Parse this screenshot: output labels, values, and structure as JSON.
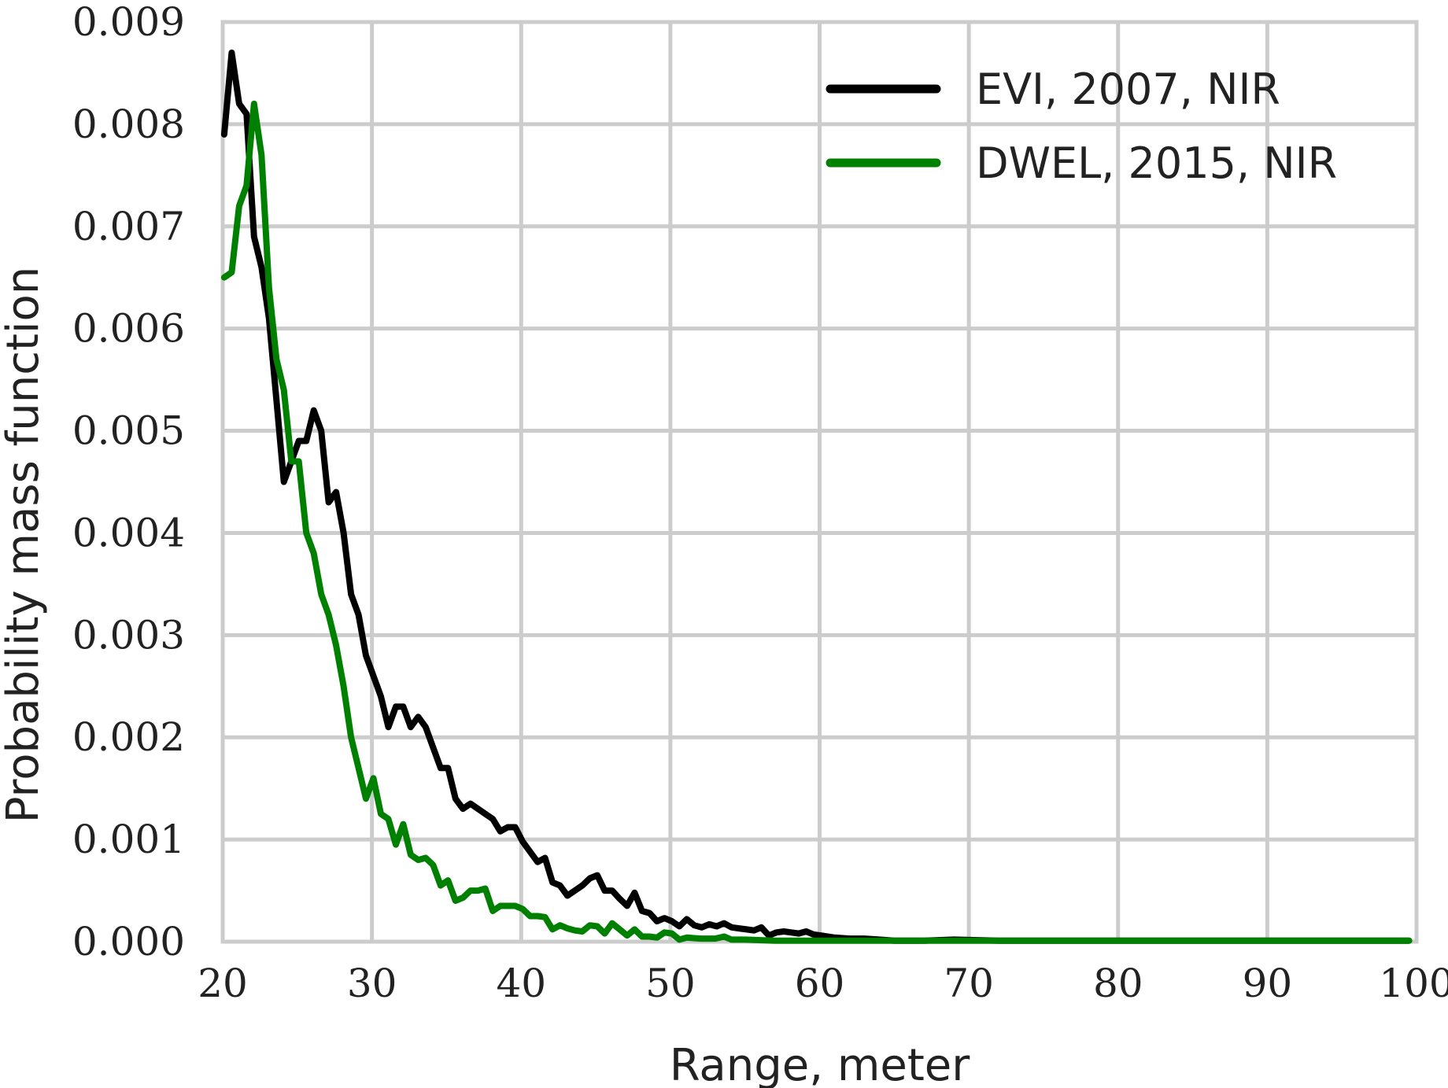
{
  "chart_data": {
    "type": "line",
    "xlabel": "Range, meter",
    "ylabel": "Probability mass function",
    "xlim": [
      20,
      100
    ],
    "ylim": [
      0,
      0.009
    ],
    "x_ticks": [
      "20",
      "30",
      "40",
      "50",
      "60",
      "70",
      "80",
      "90",
      "100"
    ],
    "y_ticks": [
      "0.000",
      "0.001",
      "0.002",
      "0.003",
      "0.004",
      "0.005",
      "0.006",
      "0.007",
      "0.008",
      "0.009"
    ],
    "grid": true,
    "legend_position": "top-right",
    "series": [
      {
        "name": "EVI, 2007, NIR",
        "color": "#000000",
        "points": [
          [
            20.1,
            0.0079
          ],
          [
            20.6,
            0.0087
          ],
          [
            21.1,
            0.0082
          ],
          [
            21.6,
            0.0081
          ],
          [
            22.1,
            0.0069
          ],
          [
            22.6,
            0.0066
          ],
          [
            23.1,
            0.0061
          ],
          [
            23.6,
            0.0053
          ],
          [
            24.1,
            0.0045
          ],
          [
            24.6,
            0.0047
          ],
          [
            25.1,
            0.0049
          ],
          [
            25.6,
            0.0049
          ],
          [
            26.1,
            0.0052
          ],
          [
            26.6,
            0.005
          ],
          [
            27.1,
            0.0043
          ],
          [
            27.6,
            0.0044
          ],
          [
            28.1,
            0.004
          ],
          [
            28.6,
            0.0034
          ],
          [
            29.1,
            0.0032
          ],
          [
            29.6,
            0.0028
          ],
          [
            30.1,
            0.0026
          ],
          [
            30.6,
            0.0024
          ],
          [
            31.1,
            0.0021
          ],
          [
            31.6,
            0.0023
          ],
          [
            32.1,
            0.0023
          ],
          [
            32.6,
            0.0021
          ],
          [
            33.1,
            0.0022
          ],
          [
            33.6,
            0.0021
          ],
          [
            34.1,
            0.0019
          ],
          [
            34.6,
            0.0017
          ],
          [
            35.1,
            0.0017
          ],
          [
            35.6,
            0.0014
          ],
          [
            36.1,
            0.0013
          ],
          [
            36.6,
            0.00135
          ],
          [
            37.1,
            0.0013
          ],
          [
            37.6,
            0.00125
          ],
          [
            38.1,
            0.0012
          ],
          [
            38.6,
            0.00108
          ],
          [
            39.1,
            0.00112
          ],
          [
            39.6,
            0.00112
          ],
          [
            40.1,
            0.00098
          ],
          [
            40.6,
            0.00088
          ],
          [
            41.1,
            0.00078
          ],
          [
            41.6,
            0.00082
          ],
          [
            42.1,
            0.00058
          ],
          [
            42.6,
            0.00055
          ],
          [
            43.1,
            0.00045
          ],
          [
            43.6,
            0.0005
          ],
          [
            44.1,
            0.00055
          ],
          [
            44.6,
            0.00062
          ],
          [
            45.1,
            0.00065
          ],
          [
            45.6,
            0.0005
          ],
          [
            46.1,
            0.0005
          ],
          [
            46.6,
            0.00042
          ],
          [
            47.1,
            0.00035
          ],
          [
            47.6,
            0.00048
          ],
          [
            48.1,
            0.0003
          ],
          [
            48.6,
            0.00028
          ],
          [
            49.1,
            0.0002
          ],
          [
            49.6,
            0.00023
          ],
          [
            50.1,
            0.0002
          ],
          [
            50.6,
            0.00015
          ],
          [
            51.1,
            0.00022
          ],
          [
            51.6,
            0.00016
          ],
          [
            52.1,
            0.00014
          ],
          [
            52.6,
            0.00017
          ],
          [
            53.1,
            0.00015
          ],
          [
            53.6,
            0.00018
          ],
          [
            54.1,
            0.00014
          ],
          [
            54.6,
            0.00013
          ],
          [
            55.1,
            0.00012
          ],
          [
            55.6,
            0.00011
          ],
          [
            56.1,
            0.00014
          ],
          [
            56.6,
            6e-05
          ],
          [
            57.1,
            9e-05
          ],
          [
            57.6,
            0.0001
          ],
          [
            58.1,
            9e-05
          ],
          [
            58.6,
            8e-05
          ],
          [
            59.1,
            0.0001
          ],
          [
            59.6,
            7e-05
          ],
          [
            60.1,
            6e-05
          ],
          [
            61.0,
            4e-05
          ],
          [
            62.0,
            3e-05
          ],
          [
            63.0,
            3e-05
          ],
          [
            64.0,
            2e-05
          ],
          [
            65.0,
            1e-05
          ],
          [
            67.0,
            1e-05
          ],
          [
            69.0,
            2e-05
          ],
          [
            72.0,
            1e-05
          ],
          [
            75.0,
            1e-05
          ],
          [
            80.0,
            1e-05
          ],
          [
            84.0,
            1e-05
          ],
          [
            90.0,
            1e-05
          ],
          [
            95.0,
            1e-05
          ],
          [
            99.5,
            1e-05
          ]
        ]
      },
      {
        "name": "DWEL, 2015, NIR",
        "color": "#008000",
        "points": [
          [
            20.1,
            0.0065
          ],
          [
            20.6,
            0.00655
          ],
          [
            21.1,
            0.0072
          ],
          [
            21.6,
            0.0074
          ],
          [
            22.1,
            0.0082
          ],
          [
            22.6,
            0.0077
          ],
          [
            23.1,
            0.0064
          ],
          [
            23.6,
            0.0057
          ],
          [
            24.1,
            0.0054
          ],
          [
            24.6,
            0.0047
          ],
          [
            25.1,
            0.0047
          ],
          [
            25.6,
            0.004
          ],
          [
            26.1,
            0.0038
          ],
          [
            26.6,
            0.0034
          ],
          [
            27.1,
            0.0032
          ],
          [
            27.6,
            0.0029
          ],
          [
            28.1,
            0.0025
          ],
          [
            28.6,
            0.002
          ],
          [
            29.1,
            0.0017
          ],
          [
            29.6,
            0.0014
          ],
          [
            30.1,
            0.0016
          ],
          [
            30.6,
            0.00125
          ],
          [
            31.1,
            0.0012
          ],
          [
            31.6,
            0.00095
          ],
          [
            32.1,
            0.00115
          ],
          [
            32.6,
            0.00085
          ],
          [
            33.1,
            0.0008
          ],
          [
            33.6,
            0.00082
          ],
          [
            34.1,
            0.00075
          ],
          [
            34.6,
            0.00055
          ],
          [
            35.1,
            0.0006
          ],
          [
            35.6,
            0.0004
          ],
          [
            36.1,
            0.00043
          ],
          [
            36.6,
            0.0005
          ],
          [
            37.1,
            0.0005
          ],
          [
            37.6,
            0.00052
          ],
          [
            38.1,
            0.0003
          ],
          [
            38.6,
            0.00035
          ],
          [
            39.1,
            0.00035
          ],
          [
            39.6,
            0.00035
          ],
          [
            40.1,
            0.00032
          ],
          [
            40.6,
            0.00025
          ],
          [
            41.1,
            0.00025
          ],
          [
            41.6,
            0.00024
          ],
          [
            42.1,
            0.00012
          ],
          [
            42.6,
            0.00016
          ],
          [
            43.1,
            0.00013
          ],
          [
            43.6,
            0.00011
          ],
          [
            44.1,
            0.0001
          ],
          [
            44.6,
            0.00016
          ],
          [
            45.1,
            0.00015
          ],
          [
            45.6,
            8e-05
          ],
          [
            46.1,
            0.00018
          ],
          [
            46.6,
            0.00012
          ],
          [
            47.1,
            6e-05
          ],
          [
            47.6,
            0.00012
          ],
          [
            48.1,
            5e-05
          ],
          [
            48.6,
            5e-05
          ],
          [
            49.1,
            4e-05
          ],
          [
            49.6,
            9e-05
          ],
          [
            50.1,
            8e-05
          ],
          [
            50.6,
            2e-05
          ],
          [
            51.1,
            4e-05
          ],
          [
            52.0,
            3e-05
          ],
          [
            53.0,
            3e-05
          ],
          [
            53.6,
            5e-05
          ],
          [
            54.1,
            2e-05
          ],
          [
            55.0,
            2e-05
          ],
          [
            57.0,
            1e-05
          ],
          [
            60.0,
            1e-05
          ],
          [
            65.0,
            1e-05
          ],
          [
            70.0,
            1e-05
          ],
          [
            75.0,
            1e-05
          ],
          [
            80.0,
            1e-05
          ],
          [
            85.0,
            1e-05
          ],
          [
            90.0,
            1e-05
          ],
          [
            95.0,
            1e-05
          ],
          [
            99.5,
            1e-05
          ]
        ]
      }
    ]
  }
}
